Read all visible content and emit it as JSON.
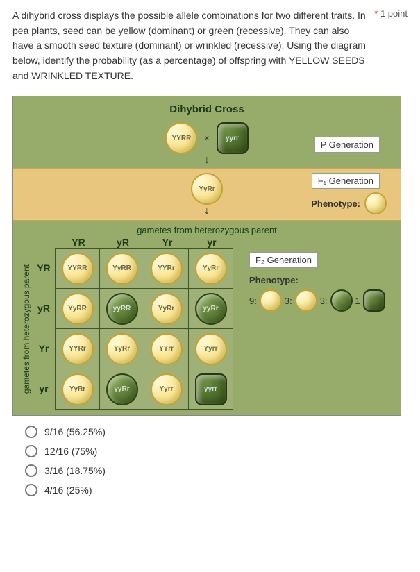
{
  "question": {
    "text": "A dihybrid cross displays the possible allele combinations for two different traits. In pea plants, seed can be yellow (dominant) or green (recessive). They can also have a smooth seed texture (dominant) or wrinkled (recessive). Using the diagram below, identify the probability (as a percentage) of offspring with YELLOW SEEDS and WRINKLED TEXTURE.",
    "required_marker": "*",
    "points": "1 point"
  },
  "diagram": {
    "title": "Dihybrid Cross",
    "p_parent_1": "YYRR",
    "cross_symbol": "×",
    "p_parent_2": "yyrr",
    "p_gen_label": "P Generation",
    "f1_genotype": "YyRr",
    "f1_gen_label": "F₁ Generation",
    "f1_phenotype_label": "Phenotype:",
    "gametes_header": "gametes from heterozygous parent",
    "ylabel": "gametes from heterozygous parent",
    "col_headers": [
      "YR",
      "yR",
      "Yr",
      "yr"
    ],
    "row_headers": [
      "YR",
      "yR",
      "Yr",
      "yr"
    ],
    "f2_gen_label": "F₂ Generation",
    "f2_phenotype_label": "Phenotype:",
    "ratio": [
      "9:",
      "3:",
      "3:",
      "1"
    ],
    "cells": [
      [
        {
          "g": "YYRR",
          "c": "yellow"
        },
        {
          "g": "YyRR",
          "c": "yellow"
        },
        {
          "g": "YYRr",
          "c": "yellow"
        },
        {
          "g": "YyRr",
          "c": "yellow"
        }
      ],
      [
        {
          "g": "YyRR",
          "c": "yellow"
        },
        {
          "g": "yyRR",
          "c": "green"
        },
        {
          "g": "YyRr",
          "c": "yellow"
        },
        {
          "g": "yyRr",
          "c": "green"
        }
      ],
      [
        {
          "g": "YYRr",
          "c": "yellow"
        },
        {
          "g": "YyRr",
          "c": "yellow"
        },
        {
          "g": "YYrr",
          "c": "yellow"
        },
        {
          "g": "Yyrr",
          "c": "yellow"
        }
      ],
      [
        {
          "g": "YyRr",
          "c": "yellow"
        },
        {
          "g": "yyRr",
          "c": "green"
        },
        {
          "g": "Yyrr",
          "c": "yellow"
        },
        {
          "g": "yyrr",
          "c": "darkgreen-square"
        }
      ]
    ],
    "ratio_seeds": [
      "yellow",
      "yellow",
      "green",
      "darkgreen-square"
    ]
  },
  "options": [
    "9/16 (56.25%)",
    "12/16 (75%)",
    "3/16 (18.75%)",
    "4/16 (25%)"
  ]
}
